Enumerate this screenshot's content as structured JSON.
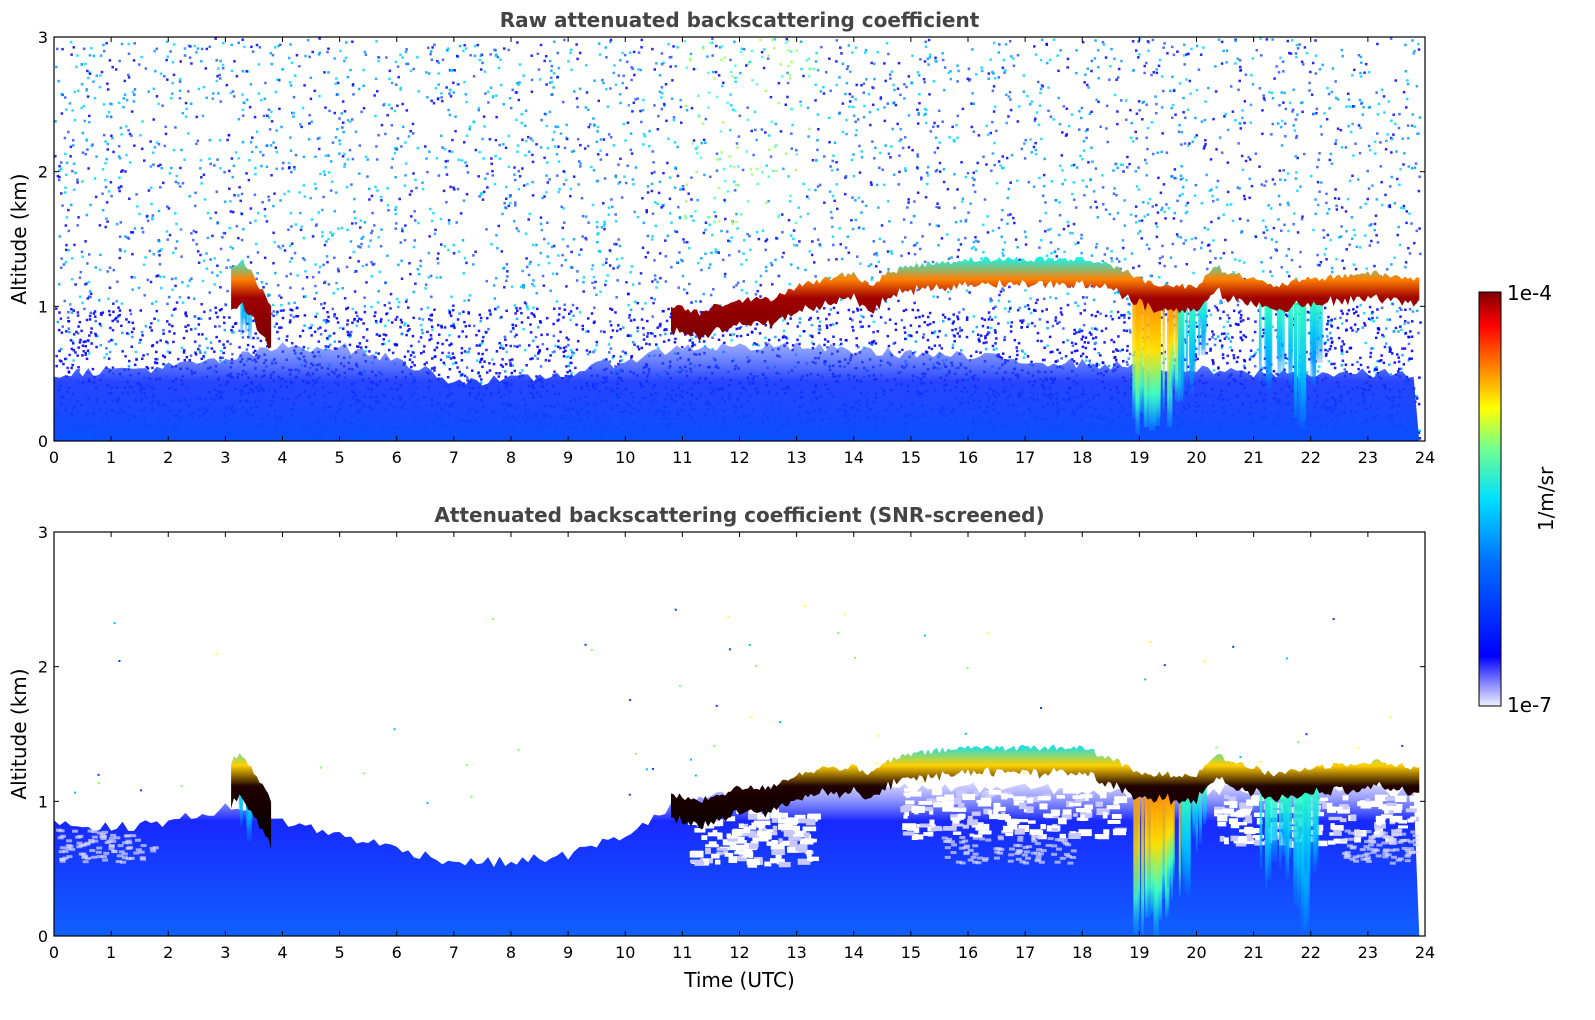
{
  "chart_data": [
    {
      "type": "heatmap",
      "title": "Raw attenuated backscattering coefficient",
      "xlabel": "",
      "ylabel": "Altitude (km)",
      "xlim": [
        0,
        24
      ],
      "ylim": [
        0,
        3
      ],
      "xticks": [
        0,
        1,
        2,
        3,
        4,
        5,
        6,
        7,
        8,
        9,
        10,
        11,
        12,
        13,
        14,
        15,
        16,
        17,
        18,
        19,
        20,
        21,
        22,
        23,
        24
      ],
      "yticks": [
        0,
        1,
        2,
        3
      ],
      "background": "noisy",
      "layer_top_km": [
        [
          3.1,
          1.3
        ],
        [
          3.3,
          1.35
        ],
        [
          3.6,
          1.15
        ],
        [
          3.8,
          1.0
        ],
        [
          11.0,
          1.0
        ],
        [
          11.3,
          0.95
        ],
        [
          11.5,
          1.0
        ],
        [
          12.0,
          1.05
        ],
        [
          12.5,
          1.05
        ],
        [
          13.0,
          1.15
        ],
        [
          13.5,
          1.2
        ],
        [
          14.0,
          1.25
        ],
        [
          14.3,
          1.15
        ],
        [
          14.6,
          1.25
        ],
        [
          15.0,
          1.3
        ],
        [
          16.0,
          1.35
        ],
        [
          17.0,
          1.35
        ],
        [
          18.0,
          1.35
        ],
        [
          18.6,
          1.3
        ],
        [
          19.0,
          1.2
        ],
        [
          19.5,
          1.15
        ],
        [
          20.0,
          1.15
        ],
        [
          20.3,
          1.3
        ],
        [
          20.6,
          1.25
        ],
        [
          21.0,
          1.2
        ],
        [
          21.3,
          1.15
        ],
        [
          22.0,
          1.2
        ],
        [
          23.0,
          1.25
        ],
        [
          23.9,
          1.2
        ]
      ],
      "aerosol_top_km": [
        [
          0,
          0.5
        ],
        [
          2,
          0.55
        ],
        [
          3,
          0.6
        ],
        [
          4,
          0.7
        ],
        [
          5,
          0.7
        ],
        [
          6,
          0.6
        ],
        [
          7,
          0.45
        ],
        [
          8,
          0.45
        ],
        [
          9,
          0.5
        ],
        [
          10,
          0.6
        ],
        [
          11,
          0.7
        ],
        [
          13,
          0.7
        ],
        [
          15,
          0.65
        ],
        [
          17,
          0.6
        ],
        [
          19,
          0.55
        ],
        [
          21,
          0.5
        ],
        [
          23.9,
          0.5
        ]
      ]
    },
    {
      "type": "heatmap",
      "title": "Attenuated backscattering coefficient (SNR-screened)",
      "xlabel": "Time (UTC)",
      "ylabel": "Altitude (km)",
      "xlim": [
        0,
        24
      ],
      "ylim": [
        0,
        3
      ],
      "xticks": [
        0,
        1,
        2,
        3,
        4,
        5,
        6,
        7,
        8,
        9,
        10,
        11,
        12,
        13,
        14,
        15,
        16,
        17,
        18,
        19,
        20,
        21,
        22,
        23,
        24
      ],
      "yticks": [
        0,
        1,
        2,
        3
      ],
      "background": "screened",
      "layer_top_km": [
        [
          3.1,
          1.3
        ],
        [
          3.3,
          1.35
        ],
        [
          3.6,
          1.15
        ],
        [
          3.8,
          1.0
        ],
        [
          10.8,
          1.05
        ],
        [
          11.3,
          1.0
        ],
        [
          12.0,
          1.1
        ],
        [
          12.5,
          1.1
        ],
        [
          13.0,
          1.2
        ],
        [
          13.5,
          1.25
        ],
        [
          14.0,
          1.25
        ],
        [
          14.3,
          1.2
        ],
        [
          14.6,
          1.3
        ],
        [
          15.0,
          1.35
        ],
        [
          16.0,
          1.4
        ],
        [
          17.0,
          1.4
        ],
        [
          18.0,
          1.4
        ],
        [
          18.6,
          1.3
        ],
        [
          19.0,
          1.2
        ],
        [
          19.5,
          1.2
        ],
        [
          20.0,
          1.2
        ],
        [
          20.3,
          1.35
        ],
        [
          20.6,
          1.3
        ],
        [
          21.0,
          1.25
        ],
        [
          21.3,
          1.2
        ],
        [
          22.0,
          1.25
        ],
        [
          23.0,
          1.3
        ],
        [
          23.9,
          1.25
        ]
      ],
      "aerosol_top_km": [
        [
          0,
          0.85
        ],
        [
          1,
          0.8
        ],
        [
          2,
          0.85
        ],
        [
          3,
          0.95
        ],
        [
          4,
          0.85
        ],
        [
          5,
          0.75
        ],
        [
          6,
          0.65
        ],
        [
          7,
          0.55
        ],
        [
          8,
          0.55
        ],
        [
          9,
          0.6
        ],
        [
          10,
          0.75
        ],
        [
          11,
          1.0
        ],
        [
          13,
          1.1
        ],
        [
          15,
          1.1
        ],
        [
          17,
          1.1
        ],
        [
          19,
          1.05
        ],
        [
          21,
          1.1
        ],
        [
          23,
          1.1
        ],
        [
          23.9,
          1.05
        ]
      ]
    }
  ],
  "colorbar": {
    "label": "1/m/sr",
    "max_label": "1e-4",
    "min_label": "1e-7",
    "scale": "log",
    "range": [
      1e-07,
      0.0001
    ],
    "colors": [
      "#f0f0ff",
      "#8080ff",
      "#0000ff",
      "#0080ff",
      "#00ffff",
      "#80ff80",
      "#ffff00",
      "#ff8000",
      "#ff0000",
      "#800000"
    ]
  }
}
